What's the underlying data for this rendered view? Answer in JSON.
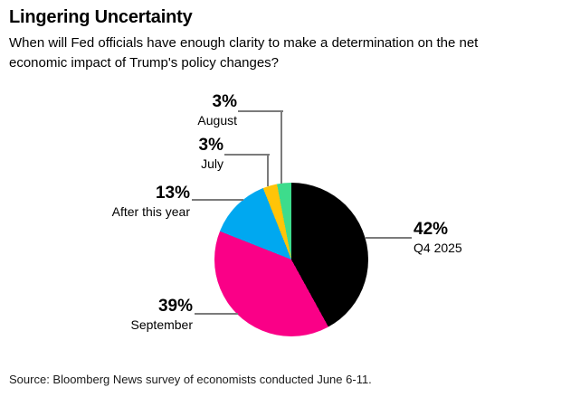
{
  "header": {
    "title": "Lingering Uncertainty",
    "subtitle_lines": [
      "When will Fed officials have enough clarity to make a determination on the net",
      "economic impact of Trump's policy changes?"
    ]
  },
  "chart_data": {
    "type": "pie",
    "title": "Lingering Uncertainty",
    "question": "When will Fed officials have enough clarity to make a determination on the net economic impact of Trump's policy changes?",
    "unit": "percent",
    "direction": "clockwise",
    "start_angle_deg": 0,
    "categories": [
      "Q4 2025",
      "September",
      "After this year",
      "July",
      "August"
    ],
    "values": [
      42,
      39,
      13,
      3,
      3
    ],
    "colors": [
      "#000000",
      "#fa0087",
      "#00a8f0",
      "#ffc408",
      "#3ddc8c"
    ],
    "legend": "none",
    "labels": "callouts-outside"
  },
  "callouts": [
    {
      "value": "42%",
      "label": "Q4 2025"
    },
    {
      "value": "39%",
      "label": "September"
    },
    {
      "value": "13%",
      "label": "After this year"
    },
    {
      "value": "3%",
      "label": "July"
    },
    {
      "value": "3%",
      "label": "August"
    }
  ],
  "footer": {
    "source": "Source: Bloomberg News survey of economists conducted June 6-11."
  },
  "style": {
    "callout_line_color": "#7b7b7b"
  }
}
